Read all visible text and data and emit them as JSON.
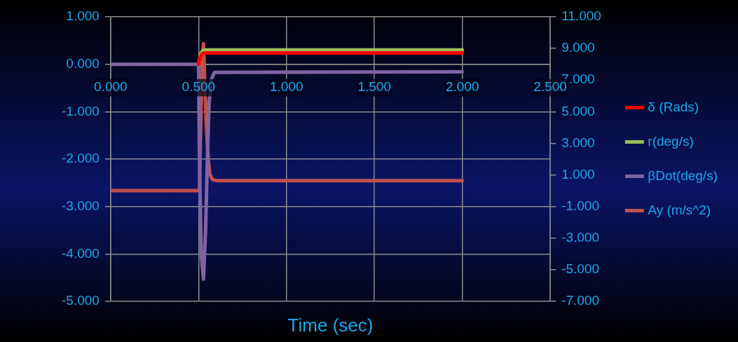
{
  "chart_data": {
    "type": "line",
    "xlabel": "Time (sec)",
    "xlim": [
      0,
      2.5
    ],
    "xticks": [
      {
        "value": 0,
        "label": "0.000"
      },
      {
        "value": 0.5,
        "label": "0.500"
      },
      {
        "value": 1,
        "label": "1.000"
      },
      {
        "value": 1.5,
        "label": "1.500"
      },
      {
        "value": 2,
        "label": "2.000"
      },
      {
        "value": 2.5,
        "label": "2.500"
      }
    ],
    "ylim": [
      -5,
      1
    ],
    "yticks": [
      {
        "value": -5,
        "label": "-5.000"
      },
      {
        "value": -4,
        "label": "-4.000"
      },
      {
        "value": -3,
        "label": "-3.000"
      },
      {
        "value": -2,
        "label": "-2.000"
      },
      {
        "value": -1,
        "label": "-1.000"
      },
      {
        "value": 0,
        "label": "0.000"
      },
      {
        "value": 1,
        "label": "1.000"
      }
    ],
    "y2lim": [
      -7,
      11
    ],
    "y2ticks": [
      {
        "value": -7,
        "label": "-7.000"
      },
      {
        "value": -5,
        "label": "-5.000"
      },
      {
        "value": -3,
        "label": "-3.000"
      },
      {
        "value": -1,
        "label": "-1.000"
      },
      {
        "value": 1,
        "label": "1.000"
      },
      {
        "value": 3,
        "label": "3.000"
      },
      {
        "value": 5,
        "label": "5.000"
      },
      {
        "value": 7,
        "label": "7.000"
      },
      {
        "value": 9,
        "label": "9.000"
      },
      {
        "value": 11,
        "label": "11.000"
      }
    ],
    "grid": true,
    "legend": "right",
    "series": [
      {
        "name": "δ (Rads)",
        "color": "#ff0000",
        "x": [
          0.5,
          0.505,
          0.512,
          0.52,
          0.53,
          2
        ],
        "values": [
          0,
          0.08,
          0.17,
          0.22,
          0.24,
          0.24
        ]
      },
      {
        "name": "r(deg/s)",
        "color": "#9bbb59",
        "x": [
          0.5,
          0.505,
          0.512,
          0.52,
          0.53,
          2
        ],
        "values": [
          0,
          0.1,
          0.21,
          0.27,
          0.3,
          0.3
        ]
      },
      {
        "name": "βDot(deg/s)",
        "color": "#8064a2",
        "x": [
          0,
          0.5,
          0.505,
          0.515,
          0.528,
          0.54,
          0.55,
          0.56,
          0.575,
          0.59,
          2
        ],
        "values": [
          0,
          0,
          -2,
          -4,
          -4.53,
          -3.5,
          -2,
          -0.8,
          -0.3,
          -0.17,
          -0.16
        ]
      },
      {
        "name": "Ay (m/s^2)",
        "color": "#c0504d",
        "axis": "y2",
        "x": [
          0,
          0.505,
          0.51,
          0.52,
          0.528,
          0.535,
          0.545,
          0.555,
          0.565,
          0.58,
          0.6,
          2
        ],
        "values": [
          0,
          0,
          3,
          8,
          9.3,
          7,
          4,
          2,
          1,
          0.7,
          0.64,
          0.64
        ]
      }
    ]
  }
}
